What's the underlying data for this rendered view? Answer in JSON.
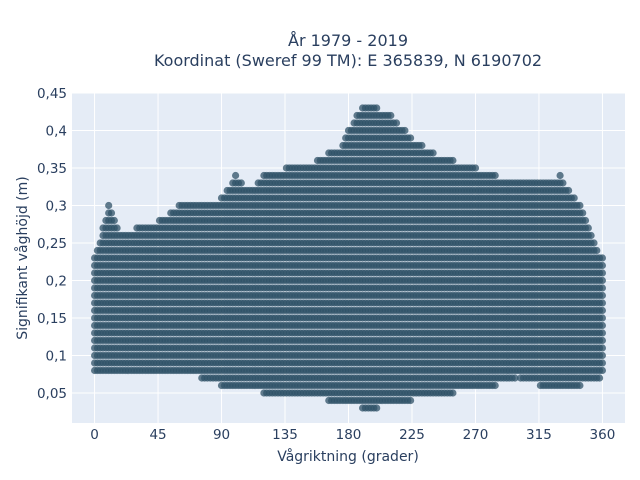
{
  "chart_data": {
    "type": "scatter",
    "title_lines": [
      "År 1979 - 2019",
      "Koordinat (Sweref 99 TM): E 365839, N 6190702"
    ],
    "xlabel": "Vågriktning (grader)",
    "ylabel": "Signifikant våghöjd (m)",
    "xlim": [
      -16,
      376
    ],
    "ylim": [
      0.01,
      0.45
    ],
    "xticks": [
      0,
      45,
      90,
      135,
      180,
      225,
      270,
      315,
      360
    ],
    "xtick_labels": [
      "0",
      "45",
      "90",
      "135",
      "180",
      "225",
      "270",
      "315",
      "360"
    ],
    "yticks": [
      0.05,
      0.1,
      0.15,
      0.2,
      0.25,
      0.3,
      0.35,
      0.4,
      0.45
    ],
    "ytick_labels": [
      "0,05",
      "0,1",
      "0,15",
      "0,2",
      "0,25",
      "0,3",
      "0,35",
      "0,4",
      "0,45"
    ],
    "grid": true,
    "marker_color": "#2f5167",
    "background_color": "#e5ecf6",
    "y_step": 0.01,
    "envelope": [
      {
        "x": 0,
        "ymin": 0.07,
        "ymax": 0.23
      },
      {
        "x": 10,
        "ymin": 0.07,
        "ymax": 0.3
      },
      {
        "x": 20,
        "ymin": 0.07,
        "ymax": 0.26
      },
      {
        "x": 30,
        "ymin": 0.07,
        "ymax": 0.27
      },
      {
        "x": 45,
        "ymin": 0.07,
        "ymax": 0.28
      },
      {
        "x": 60,
        "ymin": 0.07,
        "ymax": 0.3
      },
      {
        "x": 75,
        "ymin": 0.07,
        "ymax": 0.3
      },
      {
        "x": 90,
        "ymin": 0.06,
        "ymax": 0.31
      },
      {
        "x": 100,
        "ymin": 0.06,
        "ymax": 0.34
      },
      {
        "x": 110,
        "ymin": 0.06,
        "ymax": 0.32
      },
      {
        "x": 120,
        "ymin": 0.05,
        "ymax": 0.34
      },
      {
        "x": 135,
        "ymin": 0.05,
        "ymax": 0.35
      },
      {
        "x": 150,
        "ymin": 0.05,
        "ymax": 0.35
      },
      {
        "x": 165,
        "ymin": 0.04,
        "ymax": 0.37
      },
      {
        "x": 175,
        "ymin": 0.04,
        "ymax": 0.38
      },
      {
        "x": 185,
        "ymin": 0.04,
        "ymax": 0.42
      },
      {
        "x": 190,
        "ymin": 0.03,
        "ymax": 0.43
      },
      {
        "x": 200,
        "ymin": 0.03,
        "ymax": 0.43
      },
      {
        "x": 210,
        "ymin": 0.04,
        "ymax": 0.42
      },
      {
        "x": 225,
        "ymin": 0.04,
        "ymax": 0.39
      },
      {
        "x": 240,
        "ymin": 0.05,
        "ymax": 0.37
      },
      {
        "x": 255,
        "ymin": 0.05,
        "ymax": 0.36
      },
      {
        "x": 270,
        "ymin": 0.06,
        "ymax": 0.35
      },
      {
        "x": 285,
        "ymin": 0.06,
        "ymax": 0.34
      },
      {
        "x": 300,
        "ymin": 0.07,
        "ymax": 0.33
      },
      {
        "x": 315,
        "ymin": 0.06,
        "ymax": 0.33
      },
      {
        "x": 330,
        "ymin": 0.06,
        "ymax": 0.34
      },
      {
        "x": 345,
        "ymin": 0.06,
        "ymax": 0.3
      },
      {
        "x": 360,
        "ymin": 0.07,
        "ymax": 0.23
      }
    ]
  }
}
